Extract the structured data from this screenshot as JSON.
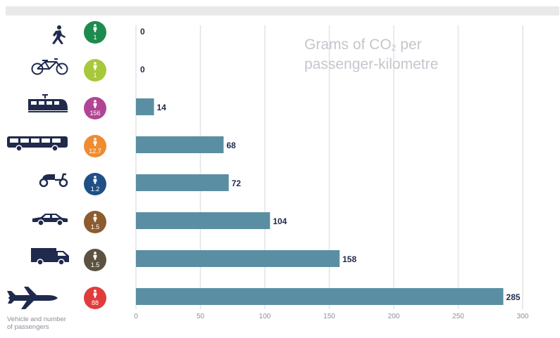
{
  "chart_data": {
    "type": "bar",
    "orientation": "horizontal",
    "title_parts": [
      "Grams of CO",
      "2",
      " per",
      "passenger-kilometre"
    ],
    "xlabel": "",
    "ylabel": "Vehicle and number of passengers",
    "xlim": [
      0,
      300
    ],
    "xticks": [
      "0",
      "50",
      "100",
      "150",
      "200",
      "250",
      "300"
    ],
    "grid": true,
    "categories": [
      "walking-icon",
      "bicycle-icon",
      "train-icon",
      "bus-icon",
      "scooter-icon",
      "car-icon",
      "van-icon",
      "airplane-icon"
    ],
    "passengers": [
      "1",
      "1",
      "156",
      "12.7",
      "1.2",
      "1.5",
      "1.5",
      "88"
    ],
    "badge_colors": [
      "#1e8a4e",
      "#a8c83c",
      "#b14595",
      "#ef8b30",
      "#1f4f86",
      "#8c5b2e",
      "#5b5340",
      "#e03c3c"
    ],
    "values": [
      0,
      0,
      14,
      68,
      72,
      104,
      158,
      285
    ],
    "labels": [
      "0",
      "0",
      "14",
      "68",
      "72",
      "104",
      "158",
      "285"
    ],
    "bar_color": "#5a8fa3"
  },
  "footer": {
    "line1": "Vehicle and number",
    "line2": "of passengers"
  }
}
